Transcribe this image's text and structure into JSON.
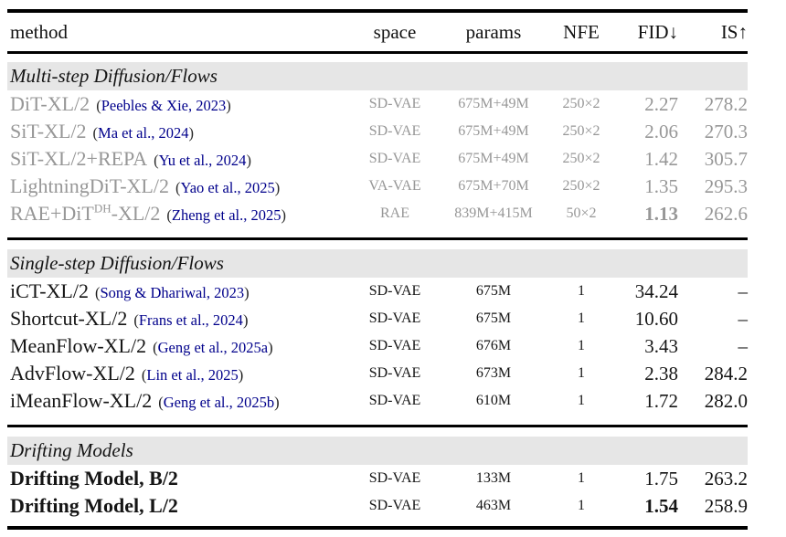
{
  "colors": {
    "citation": "#00008b",
    "dimmed_text": "#979797",
    "section_band_bg": "#e6e6e6",
    "text": "#151515",
    "rule": "#000000"
  },
  "table": {
    "columns": [
      {
        "key": "method",
        "label": "method"
      },
      {
        "key": "space",
        "label": "space"
      },
      {
        "key": "params",
        "label": "params"
      },
      {
        "key": "nfe",
        "label": "NFE"
      },
      {
        "key": "fid",
        "label": "FID↓"
      },
      {
        "key": "is",
        "label": "IS↑"
      }
    ],
    "sections": [
      {
        "title": "Multi-step Diffusion/Flows",
        "tone": "gray",
        "method_bold": false,
        "rows": [
          {
            "method": "DiT-XL/2",
            "method_sup": "",
            "method_post": "",
            "citation": "(Peebles & Xie, 2023)",
            "space": "SD-VAE",
            "params": "675M+49M",
            "nfe": "250×2",
            "fid": "2.27",
            "fid_bold": false,
            "is": "278.2"
          },
          {
            "method": "SiT-XL/2",
            "method_sup": "",
            "method_post": "",
            "citation": "(Ma et al., 2024)",
            "space": "SD-VAE",
            "params": "675M+49M",
            "nfe": "250×2",
            "fid": "2.06",
            "fid_bold": false,
            "is": "270.3"
          },
          {
            "method": "SiT-XL/2+REPA",
            "method_sup": "",
            "method_post": "",
            "citation": "(Yu et al., 2024)",
            "space": "SD-VAE",
            "params": "675M+49M",
            "nfe": "250×2",
            "fid": "1.42",
            "fid_bold": false,
            "is": "305.7"
          },
          {
            "method": "LightningDiT-XL/2",
            "method_sup": "",
            "method_post": "",
            "citation": "(Yao et al., 2025)",
            "space": "VA-VAE",
            "params": "675M+70M",
            "nfe": "250×2",
            "fid": "1.35",
            "fid_bold": false,
            "is": "295.3"
          },
          {
            "method": "RAE+DiT",
            "method_sup": "DH",
            "method_post": "-XL/2",
            "citation": "(Zheng et al., 2025)",
            "space": "RAE",
            "params": "839M+415M",
            "nfe": "50×2",
            "fid": "1.13",
            "fid_bold": true,
            "is": "262.6"
          }
        ]
      },
      {
        "title": "Single-step Diffusion/Flows",
        "tone": "black",
        "method_bold": false,
        "rows": [
          {
            "method": "iCT-XL/2",
            "method_sup": "",
            "method_post": "",
            "citation": "(Song & Dhariwal, 2023)",
            "space": "SD-VAE",
            "params": "675M",
            "nfe": "1",
            "fid": "34.24",
            "fid_bold": false,
            "is": "–"
          },
          {
            "method": "Shortcut-XL/2",
            "method_sup": "",
            "method_post": "",
            "citation": "(Frans et al., 2024)",
            "space": "SD-VAE",
            "params": "675M",
            "nfe": "1",
            "fid": "10.60",
            "fid_bold": false,
            "is": "–"
          },
          {
            "method": "MeanFlow-XL/2",
            "method_sup": "",
            "method_post": "",
            "citation": "(Geng et al., 2025a)",
            "space": "SD-VAE",
            "params": "676M",
            "nfe": "1",
            "fid": "3.43",
            "fid_bold": false,
            "is": "–"
          },
          {
            "method": "AdvFlow-XL/2",
            "method_sup": "",
            "method_post": "",
            "citation": "(Lin et al., 2025)",
            "space": "SD-VAE",
            "params": "673M",
            "nfe": "1",
            "fid": "2.38",
            "fid_bold": false,
            "is": "284.2"
          },
          {
            "method": "iMeanFlow-XL/2",
            "method_sup": "",
            "method_post": "",
            "citation": "(Geng et al., 2025b)",
            "space": "SD-VAE",
            "params": "610M",
            "nfe": "1",
            "fid": "1.72",
            "fid_bold": false,
            "is": "282.0"
          }
        ]
      },
      {
        "title": "Drifting Models",
        "tone": "black",
        "method_bold": true,
        "rows": [
          {
            "method": "Drifting Model, B/2",
            "method_sup": "",
            "method_post": "",
            "citation": "",
            "space": "SD-VAE",
            "params": "133M",
            "nfe": "1",
            "fid": "1.75",
            "fid_bold": false,
            "is": "263.2"
          },
          {
            "method": "Drifting Model, L/2",
            "method_sup": "",
            "method_post": "",
            "citation": "",
            "space": "SD-VAE",
            "params": "463M",
            "nfe": "1",
            "fid": "1.54",
            "fid_bold": true,
            "is": "258.9"
          }
        ]
      }
    ]
  }
}
